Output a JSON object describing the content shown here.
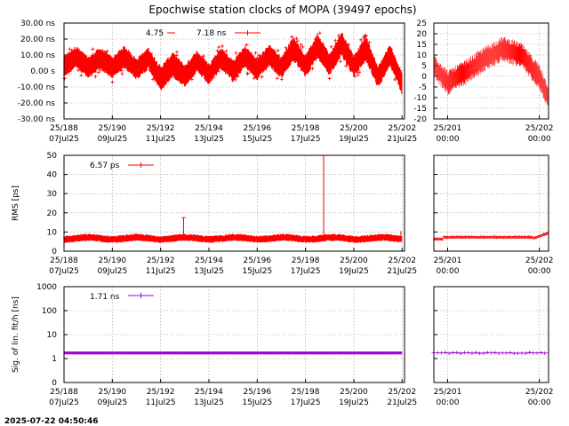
{
  "title": "Epochwise station clocks of MOPA (39497 epochs)",
  "footer": "2025-07-22 04:50:46",
  "colors": {
    "clock": "#ff0000",
    "rms": "#ff0000",
    "sig": "#a000e0",
    "grid": "#a0a0a0"
  },
  "x_main": {
    "ticks": [
      188,
      190,
      192,
      194,
      196,
      198,
      200,
      202
    ],
    "labels1": [
      "25/188",
      "25/190",
      "25/192",
      "25/194",
      "25/196",
      "25/198",
      "25/200",
      "25/202"
    ],
    "labels2": [
      "07Jul25",
      "09Jul25",
      "11Jul25",
      "13Jul25",
      "15Jul25",
      "17Jul25",
      "19Jul25",
      "21Jul25"
    ],
    "range": [
      188,
      202.1
    ]
  },
  "x_zoom": {
    "ticks": [
      201,
      202
    ],
    "labels1": [
      "25/201",
      "25/202"
    ],
    "labels2": [
      "00:00",
      "00:00"
    ],
    "range": [
      200.85,
      202.1
    ]
  },
  "chart_data": [
    {
      "type": "scatter",
      "panel": "clock",
      "ylabel": "",
      "ylim": [
        -30,
        30
      ],
      "yticks": [
        "30.00 ns",
        "20.00 ns",
        "10.00 ns",
        "0.00  s",
        "-10.00 ns",
        "-20.00 ns",
        "-30.00 ns"
      ],
      "ytick_values": [
        30,
        20,
        10,
        0,
        -10,
        -20,
        -30
      ],
      "zoom_yticks": [
        "25",
        "20",
        "15",
        "10",
        "5",
        "0",
        "-5",
        "-10",
        "-15",
        "-20"
      ],
      "zoom_ytick_values": [
        25,
        20,
        15,
        10,
        5,
        0,
        -5,
        -10,
        -15,
        -20
      ],
      "zoom_ylim": [
        -20,
        25
      ],
      "legend_left": "4.75",
      "legend_right": "7.18 ns",
      "envelope": {
        "x": [
          188.0,
          188.5,
          189.0,
          189.5,
          190.0,
          190.5,
          191.0,
          191.5,
          192.0,
          192.5,
          193.0,
          193.5,
          194.0,
          194.5,
          195.0,
          195.5,
          196.0,
          196.5,
          197.0,
          197.5,
          198.0,
          198.5,
          199.0,
          199.5,
          200.0,
          200.5,
          201.0,
          201.5,
          202.0
        ],
        "center": [
          3,
          9,
          2,
          8,
          2,
          9,
          1,
          8,
          -5,
          4,
          -3,
          6,
          -2,
          8,
          0,
          9,
          1,
          10,
          2,
          14,
          3,
          16,
          4,
          17,
          3,
          14,
          -4,
          10,
          -8
        ],
        "spread": [
          7,
          7,
          7,
          7,
          7,
          7,
          7,
          7,
          8,
          8,
          7,
          7,
          7,
          7,
          7,
          7,
          7,
          7,
          7,
          8,
          7,
          8,
          7,
          8,
          7,
          8,
          7,
          7,
          7
        ]
      },
      "zoom_envelope": {
        "x": [
          200.85,
          201.0,
          201.2,
          201.4,
          201.6,
          201.8,
          202.0,
          202.1
        ],
        "center": [
          5,
          -3,
          2,
          8,
          13,
          10,
          0,
          -10
        ],
        "spread": [
          6,
          6,
          6,
          6,
          6,
          6,
          6,
          6
        ]
      }
    },
    {
      "type": "line",
      "panel": "rms",
      "ylabel": "RMS [ps]",
      "ylim": [
        0,
        50
      ],
      "yticks": [
        "50",
        "40",
        "30",
        "20",
        "10",
        "0"
      ],
      "ytick_values": [
        50,
        40,
        30,
        20,
        10,
        0
      ],
      "legend": "6.57 ps",
      "baseline": 6.6,
      "spikes": [
        {
          "x": 192.95,
          "y": 17.5
        },
        {
          "x": 198.75,
          "y": 50
        }
      ],
      "zoom_end_bump": 9.5
    },
    {
      "type": "line",
      "panel": "sig",
      "ylabel": "Sig. of lin. fit/h [ns]",
      "scale": "log",
      "yticks": [
        "1000",
        "100",
        "10",
        "1",
        "0"
      ],
      "ylim_log": [
        0.1,
        1000
      ],
      "legend": "1.71 ns",
      "baseline": 1.71
    }
  ]
}
